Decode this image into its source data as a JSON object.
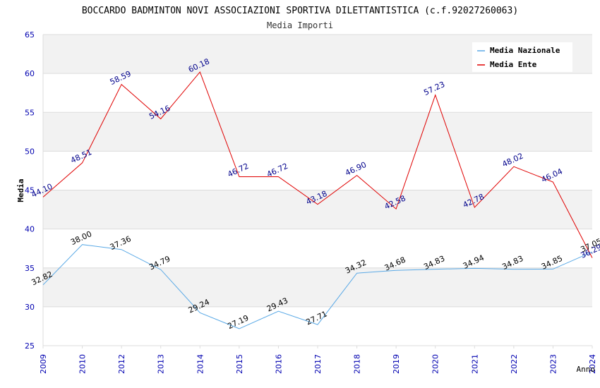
{
  "chart_data": {
    "type": "line",
    "title": "BOCCARDO BADMINTON NOVI ASSOCIAZIONI SPORTIVA DILETTANTISTICA (c.f.92027260063)",
    "subtitle": "Media Importi",
    "ylabel": "Media",
    "xlabel": "Anno",
    "ylim": [
      25,
      65
    ],
    "yticks": [
      25,
      30,
      35,
      40,
      45,
      50,
      55,
      60,
      65
    ],
    "grid": true,
    "legend_position": "top-right",
    "categories": [
      "2009",
      "2010",
      "2012",
      "2013",
      "2014",
      "2015",
      "2016",
      "2017",
      "2018",
      "2019",
      "2020",
      "2021",
      "2022",
      "2023",
      "2024"
    ],
    "series": [
      {
        "name": "Media Nazionale",
        "color": "#5aa9e6",
        "label_color": "#000000",
        "values": [
          32.82,
          38.0,
          37.36,
          34.79,
          29.24,
          27.19,
          29.43,
          27.71,
          34.32,
          34.68,
          34.83,
          34.94,
          34.83,
          34.85,
          37.05
        ],
        "labels": [
          "32.82",
          "38.00",
          "37.36",
          "34.79",
          "29.24",
          "27.19",
          "29.43",
          "27.71",
          "34.32",
          "34.68",
          "34.83",
          "34.94",
          "34.83",
          "34.85",
          "37.05"
        ]
      },
      {
        "name": "Media Ente",
        "color": "#e00000",
        "label_color": "#00008b",
        "values": [
          44.1,
          48.51,
          58.59,
          54.16,
          60.18,
          46.72,
          46.72,
          43.18,
          46.9,
          42.58,
          57.23,
          42.78,
          48.02,
          46.04,
          36.29
        ],
        "labels": [
          "44.10",
          "48.51",
          "58.59",
          "54.16",
          "60.18",
          "46.72",
          "46.72",
          "43.18",
          "46.90",
          "42.58",
          "57.23",
          "42.78",
          "48.02",
          "46.04",
          "36.29"
        ]
      }
    ],
    "colors": {
      "band_shaded": "#f2f2f2",
      "band_plain": "#ffffff",
      "grid_line": "#dcdcdc",
      "axis_tick_text": "#0000b0",
      "title_text": "#000000",
      "subtitle_text": "#333333"
    }
  }
}
